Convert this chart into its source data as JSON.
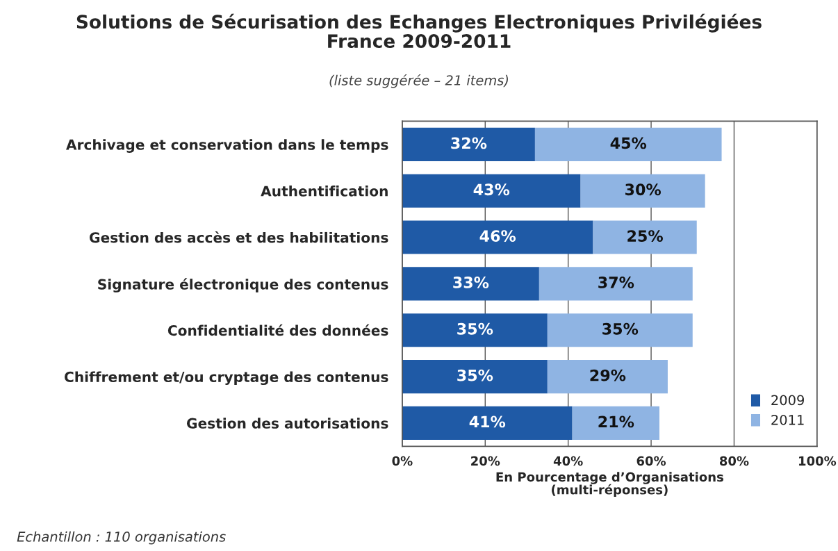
{
  "chart_data": {
    "type": "bar",
    "orientation": "horizontal",
    "stacked": true,
    "title": "Solutions de Sécurisation des Echanges Electroniques Privilégiées\nFrance 2009-2011",
    "subtitle": "(liste suggérée – 21 items)",
    "xlabel": "En Pourcentage d’Organisations\n(multi-réponses)",
    "annotations": [
      "Echantillon : 110 organisations"
    ],
    "categories": [
      "Archivage et conservation dans le temps",
      "Authentification",
      "Gestion des accès et des habilitations",
      "Signature électronique des contenus",
      "Confidentialité des données",
      "Chiffrement et/ou cryptage des contenus",
      "Gestion des autorisations"
    ],
    "series": [
      {
        "name": "2009",
        "color": "#1f5aa6",
        "values": [
          32,
          43,
          46,
          33,
          35,
          35,
          41
        ],
        "value_labels": [
          "32%",
          "43%",
          "46%",
          "33%",
          "35%",
          "35%",
          "41%"
        ]
      },
      {
        "name": "2011",
        "color": "#8fb4e3",
        "values": [
          45,
          30,
          25,
          37,
          35,
          29,
          21
        ],
        "value_labels": [
          "45%",
          "30%",
          "25%",
          "37%",
          "35%",
          "29%",
          "21%"
        ]
      }
    ],
    "xlim": [
      0,
      100
    ],
    "xticks": [
      {
        "value": 0,
        "label": "0%"
      },
      {
        "value": 20,
        "label": "20%"
      },
      {
        "value": 40,
        "label": "40%"
      },
      {
        "value": 60,
        "label": "60%"
      },
      {
        "value": 80,
        "label": "80%"
      },
      {
        "value": 100,
        "label": "100%"
      }
    ],
    "grid": "x",
    "legend": "bottom right"
  }
}
